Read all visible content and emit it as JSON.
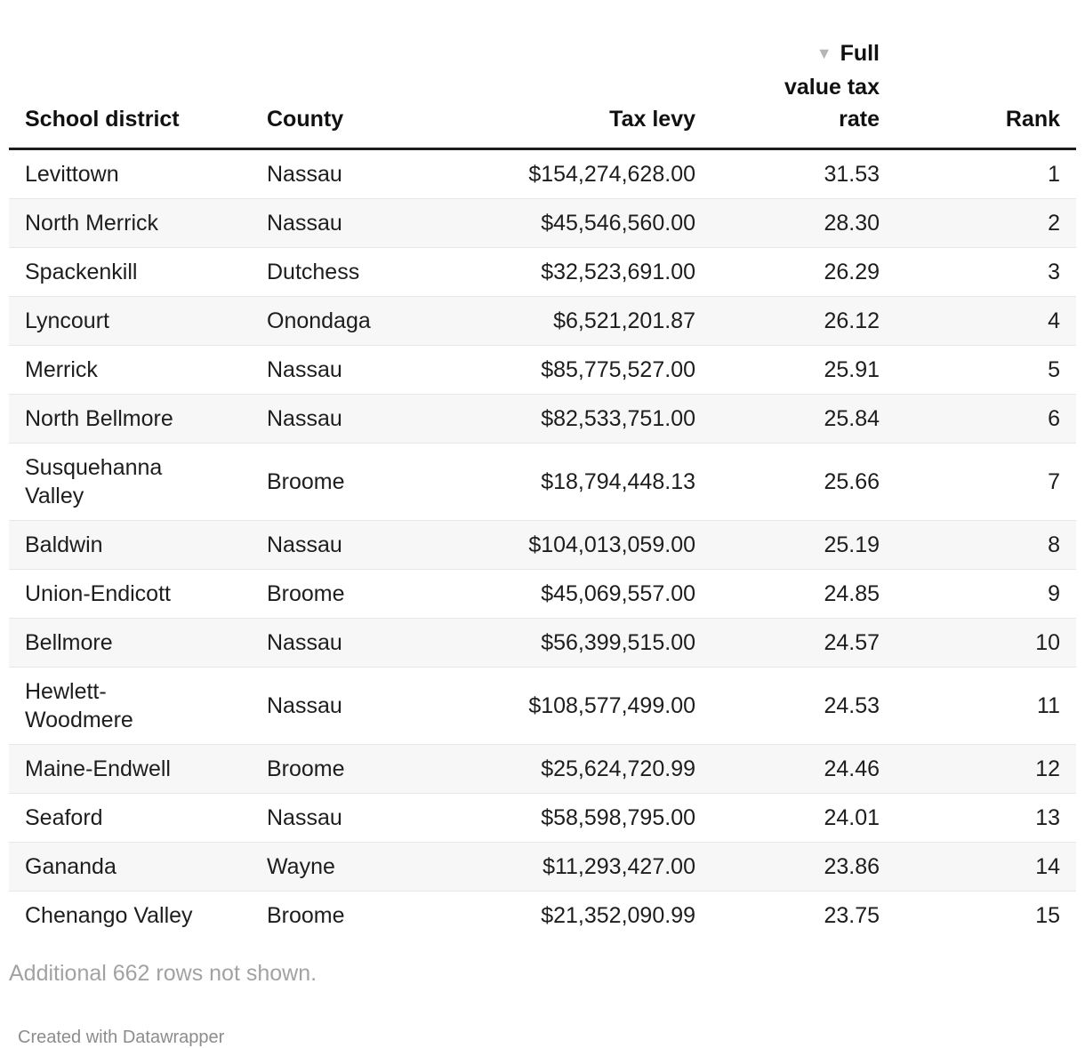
{
  "chart_data": {
    "type": "table",
    "columns": [
      {
        "key": "school_district",
        "label": "School district",
        "align": "left"
      },
      {
        "key": "county",
        "label": "County",
        "align": "left"
      },
      {
        "key": "tax_levy",
        "label": "Tax levy",
        "align": "right"
      },
      {
        "key": "full_value_tax_rate",
        "label": "Full value tax rate",
        "align": "right",
        "sorted": true,
        "sort_direction": "desc"
      },
      {
        "key": "rank",
        "label": "Rank",
        "align": "right"
      }
    ],
    "rows": [
      [
        "Levittown",
        "Nassau",
        "$154,274,628.00",
        "31.53",
        "1"
      ],
      [
        "North Merrick",
        "Nassau",
        "$45,546,560.00",
        "28.30",
        "2"
      ],
      [
        "Spackenkill",
        "Dutchess",
        "$32,523,691.00",
        "26.29",
        "3"
      ],
      [
        "Lyncourt",
        "Onondaga",
        "$6,521,201.87",
        "26.12",
        "4"
      ],
      [
        "Merrick",
        "Nassau",
        "$85,775,527.00",
        "25.91",
        "5"
      ],
      [
        "North Bellmore",
        "Nassau",
        "$82,533,751.00",
        "25.84",
        "6"
      ],
      [
        "Susquehanna Valley",
        "Broome",
        "$18,794,448.13",
        "25.66",
        "7"
      ],
      [
        "Baldwin",
        "Nassau",
        "$104,013,059.00",
        "25.19",
        "8"
      ],
      [
        "Union-Endicott",
        "Broome",
        "$45,069,557.00",
        "24.85",
        "9"
      ],
      [
        "Bellmore",
        "Nassau",
        "$56,399,515.00",
        "24.57",
        "10"
      ],
      [
        "Hewlett-Woodmere",
        "Nassau",
        "$108,577,499.00",
        "24.53",
        "11"
      ],
      [
        "Maine-Endwell",
        "Broome",
        "$25,624,720.99",
        "24.46",
        "12"
      ],
      [
        "Seaford",
        "Nassau",
        "$58,598,795.00",
        "24.01",
        "13"
      ],
      [
        "Gananda",
        "Wayne",
        "$11,293,427.00",
        "23.86",
        "14"
      ],
      [
        "Chenango Valley",
        "Broome",
        "$21,352,090.99",
        "23.75",
        "15"
      ]
    ],
    "note": "Additional 662 rows not shown.",
    "attribution": "Created with Datawrapper"
  },
  "icons": {
    "sort_desc_glyph": "▼"
  },
  "colors": {
    "header_text": "#111111",
    "header_rule": "#1c1c1c",
    "body_text": "#1d1d1d",
    "row_stripe": "#f7f7f7",
    "row_border": "#e7e7e7",
    "sort_icon": "#b5b5b5",
    "note_text": "#a2a2a2",
    "attribution_text": "#8c8c8c",
    "background": "#ffffff"
  }
}
